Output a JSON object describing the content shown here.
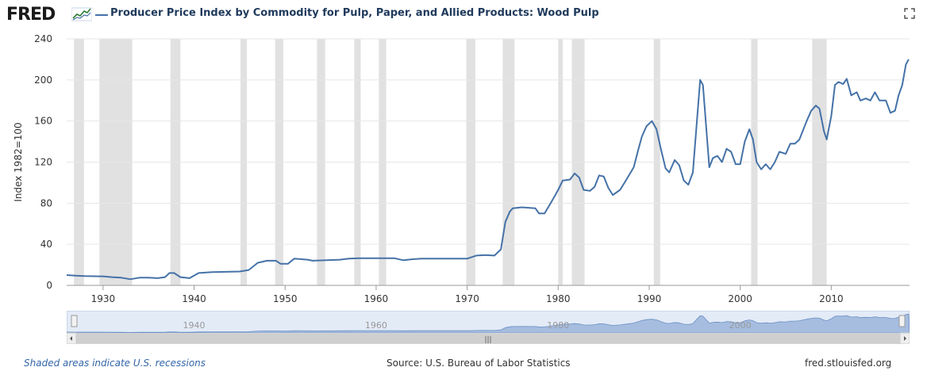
{
  "header": {
    "logo_text": "FRED",
    "title": "Producer Price Index by Commodity for Pulp, Paper, and Allied Products: Wood Pulp",
    "fullscreen_icon": "expand-icon"
  },
  "footer": {
    "recessions_note": "Shaded areas indicate U.S. recessions",
    "source": "Source: U.S. Bureau of Labor Statistics",
    "site": "fred.stlouisfed.org"
  },
  "colors": {
    "line": "#4572a7",
    "recession": "#e1e1e1",
    "grid": "#e6e6e6",
    "navigator_fill": "#a6bde0",
    "navigator_bg": "#e3ebf7"
  },
  "chart_data": {
    "type": "line",
    "title": "Producer Price Index by Commodity for Pulp, Paper, and Allied Products: Wood Pulp",
    "xlabel": "",
    "ylabel": "Index 1982=100",
    "xlim": [
      1926,
      2018.6
    ],
    "ylim": [
      0,
      240
    ],
    "y_ticks": [
      0,
      40,
      80,
      120,
      160,
      200,
      240
    ],
    "x_ticks": [
      1930,
      1940,
      1950,
      1960,
      1970,
      1980,
      1990,
      2000,
      2010
    ],
    "grid": "horizontal",
    "navigator_ticks": [
      1940,
      1960,
      1980,
      2000
    ],
    "recessions": [
      [
        1926.8,
        1927.9
      ],
      [
        1929.6,
        1933.2
      ],
      [
        1937.4,
        1938.5
      ],
      [
        1945.1,
        1945.8
      ],
      [
        1948.9,
        1949.8
      ],
      [
        1953.5,
        1954.4
      ],
      [
        1957.6,
        1958.3
      ],
      [
        1960.3,
        1961.1
      ],
      [
        1969.9,
        1970.9
      ],
      [
        1973.9,
        1975.2
      ],
      [
        1980.0,
        1980.5
      ],
      [
        1981.5,
        1982.9
      ],
      [
        1990.5,
        1991.2
      ],
      [
        2001.2,
        2001.9
      ],
      [
        2007.9,
        2009.5
      ]
    ],
    "series": [
      {
        "values": [
          [
            1926,
            10
          ],
          [
            1927,
            9.5
          ],
          [
            1928,
            9
          ],
          [
            1930,
            8.8
          ],
          [
            1931,
            8
          ],
          [
            1932,
            7.5
          ],
          [
            1933,
            6
          ],
          [
            1934,
            7.5
          ],
          [
            1935,
            7.5
          ],
          [
            1936,
            7
          ],
          [
            1936.8,
            8
          ],
          [
            1937.3,
            12
          ],
          [
            1937.8,
            12
          ],
          [
            1938.5,
            8
          ],
          [
            1939.5,
            7
          ],
          [
            1940.5,
            12
          ],
          [
            1942,
            13
          ],
          [
            1945,
            13.5
          ],
          [
            1946,
            15
          ],
          [
            1947,
            22
          ],
          [
            1948,
            24
          ],
          [
            1949,
            24
          ],
          [
            1949.5,
            21
          ],
          [
            1950.3,
            21
          ],
          [
            1951,
            26
          ],
          [
            1952.5,
            25
          ],
          [
            1953,
            24
          ],
          [
            1956,
            25
          ],
          [
            1957,
            26
          ],
          [
            1958,
            26.5
          ],
          [
            1962,
            26.5
          ],
          [
            1963,
            24.5
          ],
          [
            1964,
            25.5
          ],
          [
            1965,
            26
          ],
          [
            1970,
            26
          ],
          [
            1971,
            29
          ],
          [
            1972,
            29.5
          ],
          [
            1973,
            29
          ],
          [
            1973.7,
            35
          ],
          [
            1974.2,
            62
          ],
          [
            1974.7,
            72
          ],
          [
            1975,
            75
          ],
          [
            1976,
            76
          ],
          [
            1977.5,
            75
          ],
          [
            1977.9,
            70
          ],
          [
            1978.5,
            70
          ],
          [
            1979.3,
            82
          ],
          [
            1980,
            93
          ],
          [
            1980.5,
            102
          ],
          [
            1981.3,
            103
          ],
          [
            1981.8,
            109
          ],
          [
            1982.3,
            105
          ],
          [
            1982.8,
            93
          ],
          [
            1983.5,
            92
          ],
          [
            1984,
            96
          ],
          [
            1984.5,
            107
          ],
          [
            1985,
            106
          ],
          [
            1985.5,
            95
          ],
          [
            1986,
            88
          ],
          [
            1986.8,
            93
          ],
          [
            1987.5,
            103
          ],
          [
            1988.3,
            115
          ],
          [
            1988.8,
            132
          ],
          [
            1989.2,
            145
          ],
          [
            1989.7,
            155
          ],
          [
            1990.3,
            160
          ],
          [
            1990.8,
            152
          ],
          [
            1991.3,
            132
          ],
          [
            1991.8,
            114
          ],
          [
            1992.2,
            110
          ],
          [
            1992.8,
            122
          ],
          [
            1993.3,
            117
          ],
          [
            1993.8,
            102
          ],
          [
            1994.3,
            98
          ],
          [
            1994.8,
            110
          ],
          [
            1995.2,
            155
          ],
          [
            1995.6,
            200
          ],
          [
            1995.9,
            195
          ],
          [
            1996.3,
            150
          ],
          [
            1996.6,
            115
          ],
          [
            1997,
            124
          ],
          [
            1997.5,
            126
          ],
          [
            1998,
            120
          ],
          [
            1998.5,
            133
          ],
          [
            1999,
            130
          ],
          [
            1999.5,
            118
          ],
          [
            2000,
            118
          ],
          [
            2000.5,
            140
          ],
          [
            2001,
            152
          ],
          [
            2001.4,
            142
          ],
          [
            2001.8,
            120
          ],
          [
            2002.3,
            113
          ],
          [
            2002.8,
            118
          ],
          [
            2003.3,
            113
          ],
          [
            2003.8,
            120
          ],
          [
            2004.3,
            130
          ],
          [
            2005,
            128
          ],
          [
            2005.5,
            138
          ],
          [
            2006,
            138
          ],
          [
            2006.5,
            142
          ],
          [
            2007.3,
            160
          ],
          [
            2007.8,
            170
          ],
          [
            2008.3,
            175
          ],
          [
            2008.7,
            172
          ],
          [
            2009.2,
            150
          ],
          [
            2009.5,
            142
          ],
          [
            2010,
            165
          ],
          [
            2010.4,
            195
          ],
          [
            2010.8,
            198
          ],
          [
            2011.3,
            196
          ],
          [
            2011.7,
            201
          ],
          [
            2012.2,
            185
          ],
          [
            2012.8,
            188
          ],
          [
            2013.2,
            180
          ],
          [
            2013.8,
            182
          ],
          [
            2014.3,
            180
          ],
          [
            2014.8,
            188
          ],
          [
            2015.3,
            180
          ],
          [
            2016,
            180
          ],
          [
            2016.5,
            168
          ],
          [
            2017,
            170
          ],
          [
            2017.4,
            185
          ],
          [
            2017.8,
            195
          ],
          [
            2018.2,
            215
          ],
          [
            2018.5,
            220
          ]
        ]
      }
    ]
  }
}
